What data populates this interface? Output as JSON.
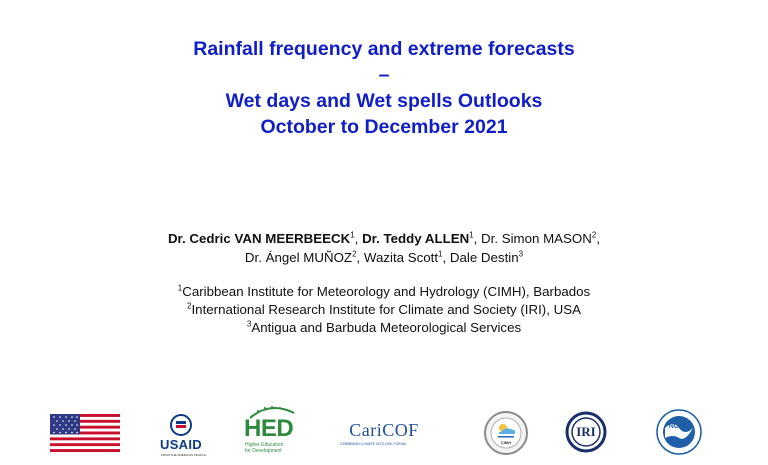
{
  "title": {
    "line1": "Rainfall frequency and extreme forecasts",
    "line2": "–",
    "line3": "Wet days and Wet spells Outlooks",
    "line4": "October to December 2021"
  },
  "authors": [
    {
      "name": "Dr. Cedric VAN MEERBEECK",
      "sup": "1",
      "bold": true,
      "sep": ", "
    },
    {
      "name": "Dr. Teddy ALLEN",
      "sup": "1",
      "bold": true,
      "sep": ", "
    },
    {
      "name": "Dr. Simon MASON",
      "sup": "2",
      "bold": false,
      "sep": ","
    },
    {
      "name": "Dr. Ángel MUÑOZ",
      "sup": "2",
      "bold": false,
      "sep": ", "
    },
    {
      "name": "Wazita Scott",
      "sup": "1",
      "bold": false,
      "sep": ", "
    },
    {
      "name": "Dale Destin",
      "sup": "3",
      "bold": false,
      "sep": ""
    }
  ],
  "affiliations": [
    {
      "sup": "1",
      "text": "Caribbean Institute for Meteorology and Hydrology (CIMH), Barbados"
    },
    {
      "sup": "2",
      "text": "International Research Institute for Climate and Society (IRI), USA"
    },
    {
      "sup": "3",
      "text": "Antigua and Barbuda Meteorological Services"
    }
  ],
  "logos": {
    "usaid": {
      "text": "USAID",
      "tagline": "FROM THE AMERICAN PEOPLE"
    },
    "hed": {
      "text": "HED",
      "tagline1": "Higher Education",
      "tagline2": "for Development"
    },
    "caricof": {
      "text": "CariCOF",
      "tagline": "CARIBBEAN CLIMATE OUTLOOK FORUM"
    },
    "cimh": {
      "text": "CIMH"
    },
    "iri": {
      "text": "IRI"
    },
    "noaa": {
      "text": "NOAA"
    }
  },
  "colors": {
    "title": "#0f1ec8",
    "usaid_blue": "#0b3a8a",
    "usaid_red": "#c8102e",
    "hed_green": "#2e8b3e",
    "noaa_blue": "#1f5fa8"
  }
}
